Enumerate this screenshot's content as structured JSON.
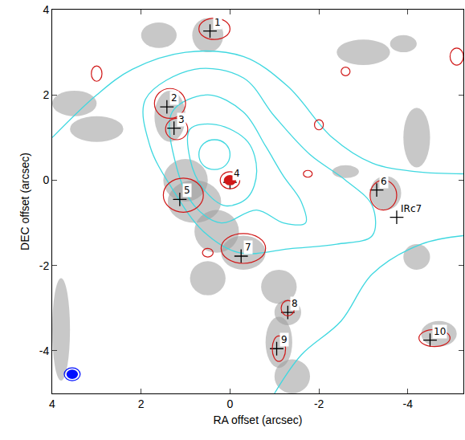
{
  "chart_data": {
    "type": "scatter",
    "xlabel": "RA offset (arcsec)",
    "ylabel": "DEC offset (arcsec)",
    "xlim": [
      4,
      -5.25
    ],
    "ylim": [
      -5,
      4
    ],
    "xticks": [
      4,
      2,
      0,
      -2,
      -4
    ],
    "yticks": [
      -4,
      -2,
      0,
      2,
      4
    ],
    "sources": {
      "marker": "cross",
      "color": "#000000",
      "labels": [
        "1",
        "2",
        "3",
        "4",
        "5",
        "6",
        "IRc7",
        "7",
        "8",
        "9",
        "10"
      ],
      "x": [
        0.45,
        1.42,
        1.26,
        0.0,
        1.13,
        -3.3,
        -3.75,
        -0.25,
        -1.3,
        -1.05,
        -4.5
      ],
      "y": [
        3.5,
        1.72,
        1.22,
        -0.05,
        -0.45,
        -0.23,
        -0.87,
        -1.78,
        -3.1,
        -3.95,
        -3.75
      ]
    },
    "layers": [
      {
        "type": "patches",
        "color": "#9a9a9a",
        "ellipses": [
          [
            3.5,
            1.8,
            0.5,
            0.3
          ],
          [
            3.0,
            1.2,
            0.6,
            0.3
          ],
          [
            1.6,
            3.4,
            0.4,
            0.3
          ],
          [
            0.5,
            3.4,
            0.35,
            0.4
          ],
          [
            1.35,
            1.5,
            0.35,
            0.6
          ],
          [
            1.0,
            0.0,
            0.5,
            0.5
          ],
          [
            0.8,
            -0.5,
            0.6,
            0.5
          ],
          [
            0.3,
            -1.2,
            0.5,
            0.5
          ],
          [
            -0.3,
            -1.7,
            0.5,
            0.4
          ],
          [
            0.5,
            -2.3,
            0.4,
            0.4
          ],
          [
            -1.1,
            -2.5,
            0.4,
            0.4
          ],
          [
            -1.3,
            -3.1,
            0.3,
            0.3
          ],
          [
            -1.1,
            -3.8,
            0.3,
            0.6
          ],
          [
            -1.4,
            -4.6,
            0.4,
            0.4
          ],
          [
            3.8,
            -3.5,
            0.2,
            1.2
          ],
          [
            -3.5,
            -0.3,
            0.35,
            0.4
          ],
          [
            -4.2,
            1.0,
            0.3,
            0.7
          ],
          [
            -3.0,
            3.0,
            0.6,
            0.3
          ],
          [
            -4.2,
            -1.8,
            0.3,
            0.3
          ],
          [
            -4.7,
            -3.6,
            0.4,
            0.3
          ],
          [
            -2.6,
            0.2,
            0.3,
            0.15
          ],
          [
            -3.9,
            3.2,
            0.3,
            0.2
          ]
        ]
      },
      {
        "type": "contours",
        "color": "#40d8e0",
        "lines": [
          {
            "x": [
              0.35,
              0.6,
              0.7,
              0.6,
              0.35,
              0.1,
              0.0,
              0.1,
              0.35
            ],
            "y": [
              0.95,
              0.85,
              0.6,
              0.35,
              0.25,
              0.35,
              0.6,
              0.85,
              0.95
            ]
          },
          {
            "x": [
              0.9,
              0.3,
              -0.4,
              -0.6,
              -0.4,
              0.1,
              0.6,
              0.9,
              0.9
            ],
            "y": [
              1.2,
              1.3,
              0.9,
              0.2,
              -0.4,
              -0.6,
              -0.2,
              0.5,
              1.2
            ]
          },
          {
            "x": [
              1.3,
              0.5,
              -0.3,
              -0.8,
              -1.2,
              -1.6,
              -1.7,
              -1.2,
              -0.6,
              0.2,
              0.8,
              1.2,
              1.3
            ],
            "y": [
              1.6,
              2.0,
              1.6,
              0.8,
              0.1,
              -0.5,
              -1.0,
              -1.0,
              -0.7,
              -1.0,
              -0.6,
              0.3,
              1.6
            ]
          },
          {
            "x": [
              1.9,
              0.8,
              -0.3,
              -1.0,
              -1.8,
              -2.6,
              -3.2,
              -3.2,
              -2.4,
              -1.4,
              -0.2,
              0.6,
              1.3,
              1.8,
              1.9
            ],
            "y": [
              1.9,
              2.6,
              2.4,
              1.5,
              0.6,
              0.0,
              -0.6,
              -1.3,
              -1.5,
              -1.6,
              -1.7,
              -1.2,
              -0.2,
              0.8,
              1.9
            ]
          },
          {
            "x": [
              4.0,
              3.0,
              2.2,
              1.0,
              -0.3,
              -1.3,
              -2.3,
              -3.2,
              -4.2,
              -5.25
            ],
            "y": [
              1.0,
              2.0,
              2.6,
              3.0,
              2.9,
              2.2,
              1.0,
              0.4,
              0.2,
              0.15
            ]
          },
          {
            "x": [
              -5.25,
              -4.3,
              -3.2,
              -2.5,
              -1.6,
              -1.0
            ],
            "y": [
              -1.3,
              -1.5,
              -2.2,
              -3.3,
              -4.1,
              -5.0
            ]
          }
        ]
      },
      {
        "type": "ellipse_contours",
        "color": "#d01818",
        "ellipses": [
          [
            0.35,
            3.55,
            0.35,
            0.25
          ],
          [
            1.35,
            1.8,
            0.35,
            0.35
          ],
          [
            1.2,
            1.2,
            0.25,
            0.25
          ],
          [
            0.0,
            0.0,
            0.22,
            0.2
          ],
          [
            1.05,
            -0.35,
            0.45,
            0.4
          ],
          [
            -0.3,
            -1.6,
            0.5,
            0.35
          ],
          [
            -1.3,
            -3.0,
            0.15,
            0.18
          ],
          [
            -1.1,
            -3.95,
            0.15,
            0.3
          ],
          [
            -4.6,
            -3.7,
            0.35,
            0.2
          ],
          [
            -3.45,
            -0.35,
            0.3,
            0.35
          ],
          [
            3.0,
            2.5,
            0.12,
            0.18
          ],
          [
            -2.6,
            2.55,
            0.1,
            0.1
          ],
          [
            -2.0,
            1.3,
            0.1,
            0.12
          ],
          [
            -5.1,
            2.9,
            0.15,
            0.2
          ],
          [
            0.5,
            -1.7,
            0.12,
            0.1
          ],
          [
            -1.75,
            0.15,
            0.1,
            0.08
          ]
        ]
      },
      {
        "type": "filled_ellipses",
        "color": "#d01818",
        "ellipses": [
          [
            0.0,
            0.0,
            0.14,
            0.12
          ]
        ]
      },
      {
        "type": "beam",
        "color": "#0010ff",
        "ellipses": [
          [
            3.55,
            -4.55,
            0.13,
            0.11
          ],
          [
            3.55,
            -4.55,
            0.18,
            0.15
          ]
        ]
      }
    ]
  }
}
